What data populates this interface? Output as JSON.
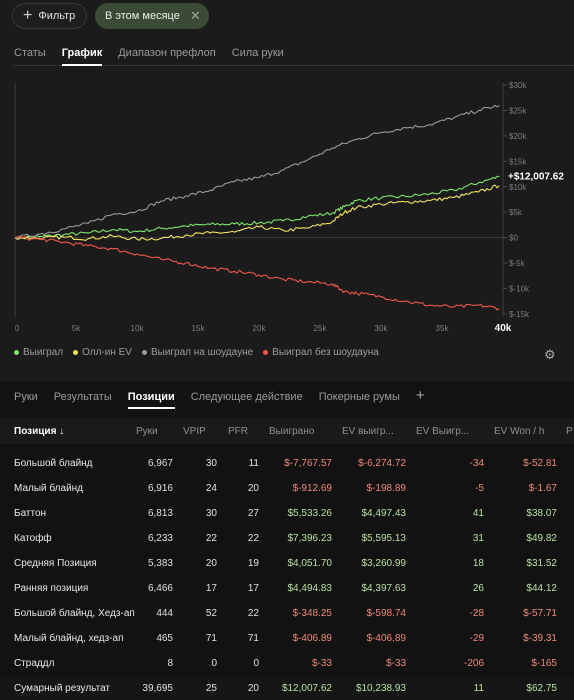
{
  "filters": {
    "add_label": "Фильтр",
    "active_chip": "В этом месяце"
  },
  "top_tabs": [
    "Статы",
    "График",
    "Диапазон префлоп",
    "Сила руки"
  ],
  "top_tabs_active": 1,
  "chart_data": {
    "type": "line",
    "x_ticks": [
      "0",
      "5k",
      "10k",
      "15k",
      "20k",
      "25k",
      "30k",
      "35k",
      "40k"
    ],
    "x_range": [
      0,
      40000
    ],
    "y_ticks": [
      "$30k",
      "$25k",
      "$20k",
      "$15k",
      "$10k",
      "$5k",
      "$0",
      "$-5k",
      "$-10k",
      "$-15k"
    ],
    "y_range": [
      -15000,
      30000
    ],
    "end_label": "+$12,007.62",
    "series": [
      {
        "name": "Выиграл",
        "color": "#7ee36b",
        "points": [
          [
            0,
            0
          ],
          [
            2000,
            200
          ],
          [
            4000,
            600
          ],
          [
            6000,
            900
          ],
          [
            8000,
            1600
          ],
          [
            10000,
            1200
          ],
          [
            12000,
            1800
          ],
          [
            14000,
            2300
          ],
          [
            16000,
            2600
          ],
          [
            18000,
            2700
          ],
          [
            20000,
            2900
          ],
          [
            22000,
            3300
          ],
          [
            24000,
            4200
          ],
          [
            26000,
            4800
          ],
          [
            27000,
            6100
          ],
          [
            28000,
            7300
          ],
          [
            30000,
            7800
          ],
          [
            32000,
            8100
          ],
          [
            34000,
            8600
          ],
          [
            36000,
            9300
          ],
          [
            38000,
            10800
          ],
          [
            39695,
            12007.62
          ]
        ]
      },
      {
        "name": "Олл-ин EV",
        "color": "#f2e45c",
        "points": [
          [
            0,
            0
          ],
          [
            2000,
            -100
          ],
          [
            4000,
            100
          ],
          [
            6000,
            -200
          ],
          [
            8000,
            300
          ],
          [
            10000,
            -300
          ],
          [
            12000,
            -100
          ],
          [
            14000,
            500
          ],
          [
            16000,
            900
          ],
          [
            18000,
            1100
          ],
          [
            20000,
            2100
          ],
          [
            22000,
            1400
          ],
          [
            24000,
            1900
          ],
          [
            26000,
            3100
          ],
          [
            27000,
            5000
          ],
          [
            28000,
            5900
          ],
          [
            30000,
            6600
          ],
          [
            32000,
            7000
          ],
          [
            34000,
            7300
          ],
          [
            36000,
            7900
          ],
          [
            38000,
            9000
          ],
          [
            39695,
            10238.93
          ]
        ]
      },
      {
        "name": "Выиграл на шоудауне",
        "color": "#9a9a9a",
        "points": [
          [
            0,
            0
          ],
          [
            2000,
            700
          ],
          [
            4000,
            1700
          ],
          [
            6000,
            2800
          ],
          [
            8000,
            4600
          ],
          [
            10000,
            5200
          ],
          [
            12000,
            7200
          ],
          [
            14000,
            8200
          ],
          [
            16000,
            9300
          ],
          [
            18000,
            11000
          ],
          [
            20000,
            11800
          ],
          [
            22000,
            13300
          ],
          [
            24000,
            15300
          ],
          [
            26000,
            17600
          ],
          [
            28000,
            19300
          ],
          [
            30000,
            20700
          ],
          [
            32000,
            21600
          ],
          [
            34000,
            22200
          ],
          [
            36000,
            23600
          ],
          [
            38000,
            25000
          ],
          [
            39695,
            26000
          ]
        ]
      },
      {
        "name": "Выиграл без шоудауна",
        "color": "#f0574a",
        "points": [
          [
            0,
            0
          ],
          [
            2000,
            -300
          ],
          [
            4000,
            -900
          ],
          [
            6000,
            -1600
          ],
          [
            8000,
            -2200
          ],
          [
            10000,
            -3200
          ],
          [
            12000,
            -4300
          ],
          [
            14000,
            -5000
          ],
          [
            16000,
            -6000
          ],
          [
            18000,
            -6600
          ],
          [
            20000,
            -7300
          ],
          [
            22000,
            -8200
          ],
          [
            24000,
            -8700
          ],
          [
            26000,
            -9100
          ],
          [
            27000,
            -10600
          ],
          [
            28000,
            -10900
          ],
          [
            30000,
            -11600
          ],
          [
            32000,
            -12500
          ],
          [
            34000,
            -13300
          ],
          [
            36000,
            -13600
          ],
          [
            38000,
            -13300
          ],
          [
            39695,
            -13900
          ]
        ]
      }
    ]
  },
  "bottom_tabs": [
    "Руки",
    "Результаты",
    "Позиции",
    "Следующее действие",
    "Покерные румы"
  ],
  "bottom_tabs_active": 2,
  "table": {
    "headers": {
      "pos": "Позиция ↓",
      "hands": "Руки",
      "vpip": "VPIP",
      "pfr": "PFR",
      "won": "Выиграно",
      "ev": "EV выигр...",
      "evbb": "EV Выигр...",
      "evh": "EV Won / h",
      "extra": "P"
    },
    "rows": [
      {
        "pos": "Большой блайнд",
        "hands": "6,967",
        "vpip": "30",
        "pfr": "11",
        "won": "$-7,767.57",
        "ev": "$-6,274.72",
        "evbb": "-34",
        "evh": "$-52.81"
      },
      {
        "pos": "Малый блайнд",
        "hands": "6,916",
        "vpip": "24",
        "pfr": "20",
        "won": "$-912.69",
        "ev": "$-198.89",
        "evbb": "-5",
        "evh": "$-1.67"
      },
      {
        "pos": "Баттон",
        "hands": "6,813",
        "vpip": "30",
        "pfr": "27",
        "won": "$5,533.26",
        "ev": "$4,497.43",
        "evbb": "41",
        "evh": "$38.07"
      },
      {
        "pos": "Катофф",
        "hands": "6,233",
        "vpip": "22",
        "pfr": "22",
        "won": "$7,396.23",
        "ev": "$5,595.13",
        "evbb": "31",
        "evh": "$49.82"
      },
      {
        "pos": "Средняя Позиция",
        "hands": "5,383",
        "vpip": "20",
        "pfr": "19",
        "won": "$4,051.70",
        "ev": "$3,260.99",
        "evbb": "18",
        "evh": "$31.52"
      },
      {
        "pos": "Ранняя позиция",
        "hands": "6,466",
        "vpip": "17",
        "pfr": "17",
        "won": "$4,494.83",
        "ev": "$4,397.63",
        "evbb": "26",
        "evh": "$44.12"
      },
      {
        "pos": "Большой блайнд, Хедз-ап",
        "hands": "444",
        "vpip": "52",
        "pfr": "22",
        "won": "$-348.25",
        "ev": "$-598.74",
        "evbb": "-28",
        "evh": "$-57.71"
      },
      {
        "pos": "Малый блайнд, хедз-ап",
        "hands": "465",
        "vpip": "71",
        "pfr": "71",
        "won": "$-406.89",
        "ev": "$-406.89",
        "evbb": "-29",
        "evh": "$-39.31"
      },
      {
        "pos": "Страддл",
        "hands": "8",
        "vpip": "0",
        "pfr": "0",
        "won": "$-33",
        "ev": "$-33",
        "evbb": "-206",
        "evh": "$-165"
      }
    ],
    "total": {
      "pos": "Сумарный результат",
      "hands": "39,695",
      "vpip": "25",
      "pfr": "20",
      "won": "$12,007.62",
      "ev": "$10,238.93",
      "evbb": "11",
      "evh": "$62.75"
    }
  }
}
